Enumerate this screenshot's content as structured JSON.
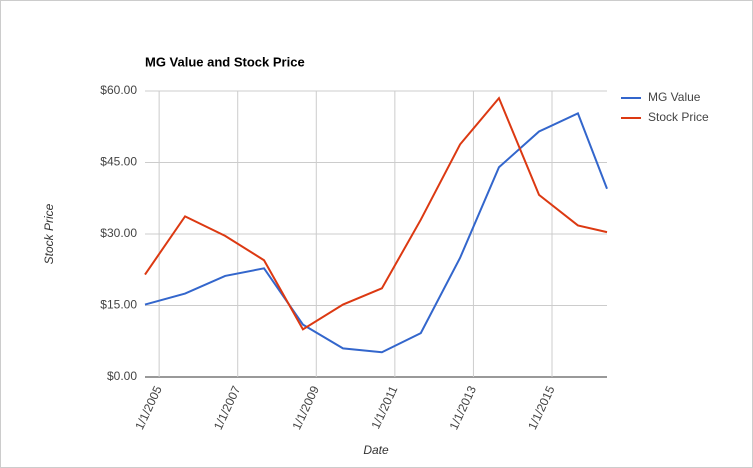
{
  "chart_data": {
    "type": "line",
    "title": "MG Value and Stock Price",
    "x_label": "Date",
    "y_label": "Stock Price",
    "x": [
      2004.64,
      2005.66,
      2006.68,
      2007.67,
      2008.66,
      2009.68,
      2010.67,
      2011.66,
      2012.66,
      2013.65,
      2014.67,
      2015.66,
      2016.4
    ],
    "series": [
      {
        "name": "MG Value",
        "color": "#3366cc",
        "values": [
          15.2,
          17.5,
          21.2,
          22.8,
          11,
          6,
          5.2,
          9.2,
          25,
          44,
          51.5,
          55.3,
          39.5
        ]
      },
      {
        "name": "Stock Price",
        "color": "#dc3912",
        "values": [
          21.5,
          33.7,
          29.6,
          24.5,
          10,
          15.2,
          18.6,
          33,
          48.8,
          58.5,
          38.2,
          31.8,
          30.4
        ]
      }
    ],
    "xlim": [
      2004.64,
      2016.4
    ],
    "xticks": [
      {
        "value": 2005,
        "label": "1/1/2005"
      },
      {
        "value": 2007,
        "label": "1/1/2007"
      },
      {
        "value": 2009,
        "label": "1/1/2009"
      },
      {
        "value": 2011,
        "label": "1/1/2011"
      },
      {
        "value": 2013,
        "label": "1/1/2013"
      },
      {
        "value": 2015,
        "label": "1/1/2015"
      }
    ],
    "ylim": [
      0,
      60
    ],
    "yticks": [
      {
        "value": 0,
        "label": "$0.00"
      },
      {
        "value": 15,
        "label": "$15.00"
      },
      {
        "value": 30,
        "label": "$30.00"
      },
      {
        "value": 45,
        "label": "$45.00"
      },
      {
        "value": 60,
        "label": "$60.00"
      }
    ],
    "grid": true,
    "legend": "right"
  }
}
